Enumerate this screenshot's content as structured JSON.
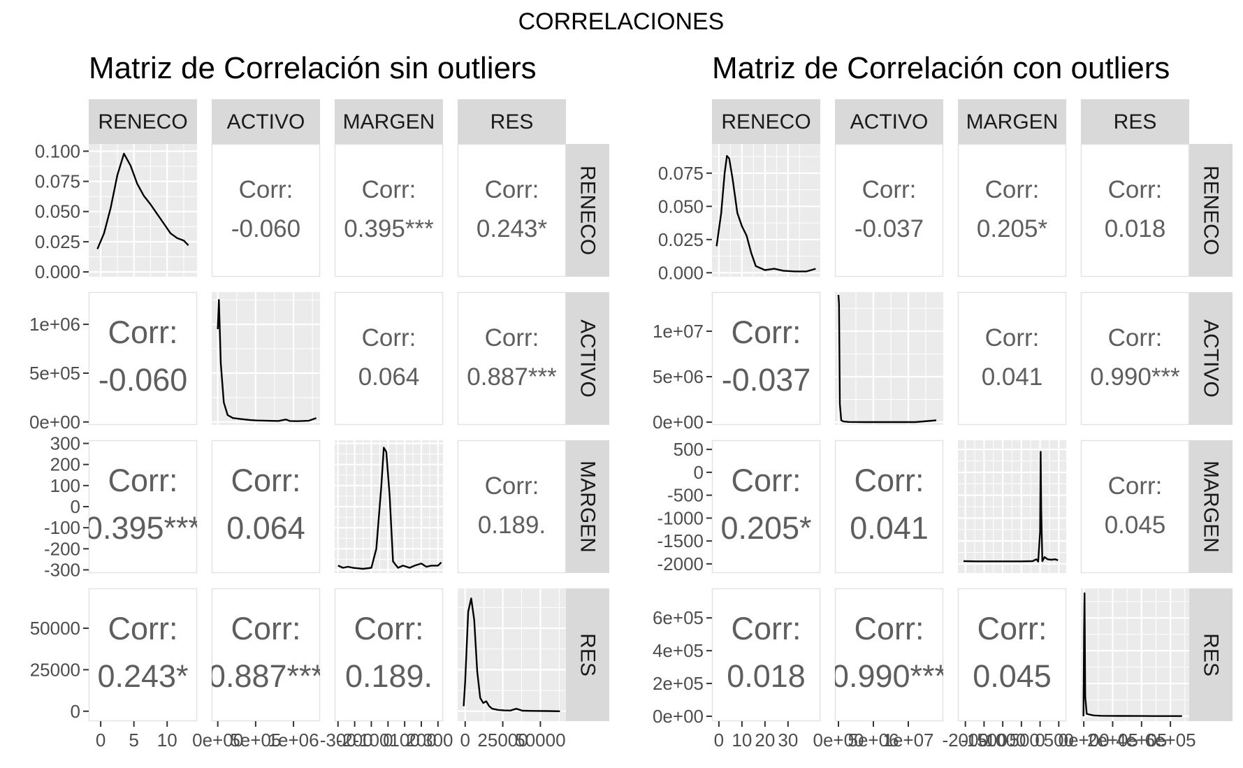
{
  "main_title": "CORRELACIONES",
  "colors": {
    "panel_bg": "#EBEBEB",
    "grid": "#FFFFFF",
    "strip_bg": "#D9D9D9",
    "corr_text": "#5E5E5E",
    "axis_text": "#4D4D4D",
    "line": "#000000"
  },
  "chart_data": [
    {
      "type": "scatter-matrix",
      "title": "Matriz de Correlación sin outliers",
      "variables": [
        "RENECO",
        "ACTIVO",
        "MARGEN",
        "RES"
      ],
      "correlations": {
        "RENECO-ACTIVO": "-0.060",
        "RENECO-MARGEN": "0.395***",
        "RENECO-RES": "0.243*",
        "ACTIVO-MARGEN": "0.064",
        "ACTIVO-RES": "0.887***",
        "MARGEN-RES": "0.189."
      },
      "corr_label": "Corr:",
      "y_axes": {
        "RENECO": {
          "ticks": [
            "0.000",
            "0.025",
            "0.050",
            "0.075",
            "0.100"
          ],
          "values": [
            0,
            0.025,
            0.05,
            0.075,
            0.1
          ],
          "range": [
            -0.004,
            0.106
          ]
        },
        "ACTIVO": {
          "ticks": [
            "0e+00",
            "5e+05",
            "1e+06"
          ],
          "values": [
            0,
            500000,
            1000000
          ],
          "range": [
            -30000,
            1330000
          ]
        },
        "MARGEN": {
          "ticks": [
            "-300",
            "-200",
            "-100",
            "0",
            "100",
            "200",
            "300"
          ],
          "values": [
            -300,
            -200,
            -100,
            0,
            100,
            200,
            300
          ],
          "range": [
            -315,
            315
          ]
        },
        "RES": {
          "ticks": [
            "0",
            "25000",
            "50000"
          ],
          "values": [
            0,
            25000,
            50000
          ],
          "range": [
            -6000,
            74000
          ]
        }
      },
      "x_axes": {
        "RENECO": {
          "ticks": [
            "0",
            "5",
            "10"
          ],
          "values": [
            0,
            5,
            10
          ],
          "range": [
            -1.8,
            14.5
          ]
        },
        "ACTIVO": {
          "ticks": [
            "0e+00",
            "5e+05",
            "1e+06"
          ],
          "values": [
            0,
            500000,
            1000000
          ],
          "range": [
            -80000,
            1350000
          ]
        },
        "MARGEN": {
          "ticks": [
            "-300",
            "-200",
            "-100",
            "0",
            "100",
            "200",
            "300"
          ],
          "values": [
            -300,
            -200,
            -100,
            0,
            100,
            200,
            300
          ],
          "range": [
            -320,
            330
          ]
        },
        "RES": {
          "ticks": [
            "0",
            "25000",
            "50000"
          ],
          "values": [
            0,
            25000,
            50000
          ],
          "range": [
            -5000,
            67000
          ]
        }
      },
      "densities": {
        "RENECO": [
          [
            -0.5,
            0.019
          ],
          [
            0.5,
            0.032
          ],
          [
            1.5,
            0.053
          ],
          [
            2.5,
            0.08
          ],
          [
            3.5,
            0.098
          ],
          [
            4.5,
            0.088
          ],
          [
            5.5,
            0.073
          ],
          [
            6.5,
            0.063
          ],
          [
            7.5,
            0.056
          ],
          [
            8.5,
            0.048
          ],
          [
            9.5,
            0.04
          ],
          [
            10.5,
            0.032
          ],
          [
            11.5,
            0.028
          ],
          [
            12.5,
            0.026
          ],
          [
            13.2,
            0.022
          ]
        ],
        "ACTIVO": [
          [
            0,
            950000
          ],
          [
            15000,
            1250000
          ],
          [
            40000,
            600000
          ],
          [
            80000,
            200000
          ],
          [
            130000,
            70000
          ],
          [
            200000,
            40000
          ],
          [
            300000,
            30000
          ],
          [
            420000,
            20000
          ],
          [
            520000,
            15000
          ],
          [
            650000,
            12000
          ],
          [
            800000,
            10000
          ],
          [
            900000,
            25000
          ],
          [
            950000,
            10000
          ],
          [
            1050000,
            8000
          ],
          [
            1200000,
            12000
          ],
          [
            1300000,
            40000
          ]
        ],
        "MARGEN": [
          [
            -300,
            -280
          ],
          [
            -270,
            -290
          ],
          [
            -240,
            -285
          ],
          [
            -210,
            -290
          ],
          [
            -150,
            -295
          ],
          [
            -100,
            -290
          ],
          [
            -70,
            -200
          ],
          [
            -40,
            100
          ],
          [
            -25,
            280
          ],
          [
            -10,
            260
          ],
          [
            10,
            50
          ],
          [
            30,
            -260
          ],
          [
            60,
            -290
          ],
          [
            90,
            -280
          ],
          [
            130,
            -290
          ],
          [
            160,
            -280
          ],
          [
            200,
            -270
          ],
          [
            230,
            -285
          ],
          [
            260,
            -280
          ],
          [
            300,
            -280
          ],
          [
            320,
            -265
          ]
        ],
        "RES": [
          [
            -1000,
            3000
          ],
          [
            0,
            18000
          ],
          [
            2000,
            60000
          ],
          [
            4000,
            68000
          ],
          [
            6000,
            55000
          ],
          [
            8000,
            24000
          ],
          [
            10000,
            8000
          ],
          [
            12000,
            5000
          ],
          [
            14000,
            6000
          ],
          [
            16000,
            3000
          ],
          [
            18000,
            1500
          ],
          [
            22000,
            800
          ],
          [
            26000,
            500
          ],
          [
            30000,
            400
          ],
          [
            34000,
            1500
          ],
          [
            38000,
            300
          ],
          [
            45000,
            200
          ],
          [
            55000,
            100
          ],
          [
            63000,
            0
          ]
        ]
      }
    },
    {
      "type": "scatter-matrix",
      "title": "Matriz de Correlación con outliers",
      "variables": [
        "RENECO",
        "ACTIVO",
        "MARGEN",
        "RES"
      ],
      "correlations": {
        "RENECO-ACTIVO": "-0.037",
        "RENECO-MARGEN": "0.205*",
        "RENECO-RES": "0.018",
        "ACTIVO-MARGEN": "0.041",
        "ACTIVO-RES": "0.990***",
        "MARGEN-RES": "0.045"
      },
      "corr_label": "Corr:",
      "y_axes": {
        "RENECO": {
          "ticks": [
            "0.000",
            "0.025",
            "0.050",
            "0.075"
          ],
          "values": [
            0,
            0.025,
            0.05,
            0.075
          ],
          "range": [
            -0.003,
            0.097
          ]
        },
        "ACTIVO": {
          "ticks": [
            "0e+00",
            "5e+06",
            "1e+07"
          ],
          "values": [
            0,
            5000000,
            10000000
          ],
          "range": [
            -300000,
            14300000
          ]
        },
        "MARGEN": {
          "ticks": [
            "-2000",
            "-1500",
            "-1000",
            "-500",
            "0",
            "500"
          ],
          "values": [
            -2000,
            -1500,
            -1000,
            -500,
            0,
            500
          ],
          "range": [
            -2200,
            700
          ]
        },
        "RES": {
          "ticks": [
            "0e+00",
            "2e+05",
            "4e+05",
            "6e+05"
          ],
          "values": [
            0,
            200000,
            400000,
            600000
          ],
          "range": [
            -30000,
            780000
          ]
        }
      },
      "x_axes": {
        "RENECO": {
          "ticks": [
            "0",
            "10",
            "20",
            "30"
          ],
          "values": [
            0,
            10,
            20,
            30
          ],
          "range": [
            -3,
            44
          ]
        },
        "ACTIVO": {
          "ticks": [
            "0e+00",
            "5e+06",
            "1e+07"
          ],
          "values": [
            0,
            5000000,
            10000000
          ],
          "range": [
            -500000,
            15000000
          ]
        },
        "MARGEN": {
          "ticks": [
            "-2000",
            "-1500",
            "-1000",
            "-500",
            "0",
            "500"
          ],
          "values": [
            -2000,
            -1500,
            -1000,
            -500,
            0,
            500
          ],
          "range": [
            -2200,
            700
          ]
        },
        "RES": {
          "ticks": [
            "0e+00",
            "2e+05",
            "4e+05",
            "6e+05"
          ],
          "values": [
            0,
            200000,
            400000,
            600000
          ],
          "range": [
            -20000,
            730000
          ]
        }
      },
      "densities": {
        "RENECO": [
          [
            -1,
            0.02
          ],
          [
            1,
            0.045
          ],
          [
            2.5,
            0.075
          ],
          [
            3.5,
            0.088
          ],
          [
            4.5,
            0.086
          ],
          [
            6,
            0.07
          ],
          [
            8,
            0.045
          ],
          [
            10,
            0.035
          ],
          [
            12,
            0.028
          ],
          [
            14,
            0.015
          ],
          [
            16,
            0.005
          ],
          [
            20,
            0.002
          ],
          [
            24,
            0.003
          ],
          [
            28,
            0.0015
          ],
          [
            33,
            0.001
          ],
          [
            38,
            0.001
          ],
          [
            42,
            0.003
          ]
        ],
        "ACTIVO": [
          [
            0,
            14000000
          ],
          [
            80000,
            13000000
          ],
          [
            200000,
            2000000
          ],
          [
            400000,
            200000
          ],
          [
            700000,
            80000
          ],
          [
            1500000,
            20000
          ],
          [
            4000000,
            10000
          ],
          [
            8000000,
            8000
          ],
          [
            11000000,
            8000
          ],
          [
            14000000,
            200000
          ]
        ],
        "MARGEN": [
          [
            -2050,
            -1940
          ],
          [
            -1700,
            -1945
          ],
          [
            -1300,
            -1945
          ],
          [
            -900,
            -1945
          ],
          [
            -500,
            -1945
          ],
          [
            -200,
            -1940
          ],
          [
            -100,
            -1900
          ],
          [
            -50,
            -1950
          ],
          [
            0,
            -1300
          ],
          [
            15,
            450
          ],
          [
            30,
            -800
          ],
          [
            60,
            -1940
          ],
          [
            120,
            -1850
          ],
          [
            200,
            -1900
          ],
          [
            300,
            -1910
          ],
          [
            400,
            -1900
          ],
          [
            480,
            -1920
          ]
        ],
        "RES": [
          [
            -2000,
            0
          ],
          [
            2000,
            500000
          ],
          [
            5000,
            750000
          ],
          [
            10000,
            120000
          ],
          [
            20000,
            15000
          ],
          [
            40000,
            10000
          ],
          [
            70000,
            5000
          ],
          [
            120000,
            3000
          ],
          [
            250000,
            2000
          ],
          [
            400000,
            1500
          ],
          [
            550000,
            1000
          ],
          [
            680000,
            1000
          ]
        ]
      }
    }
  ]
}
